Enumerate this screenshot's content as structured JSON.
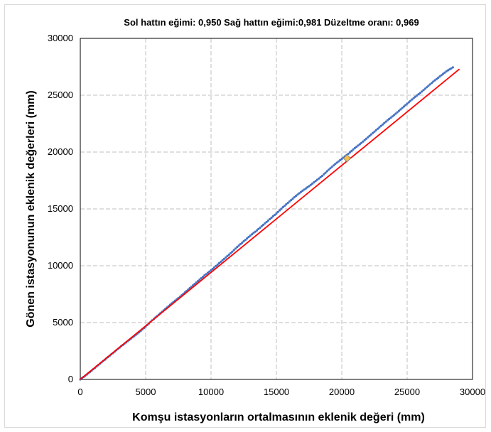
{
  "chart_data": {
    "type": "scatter",
    "title": "Sol hattın eğimi: 0,950 Sağ hattın eğimi:0,981 Düzeltme oranı: 0,969",
    "xlabel": "Komşu istasyonların ortalmasının eklenik değeri (mm)",
    "ylabel": "Gönen istasyonunun eklenik değerleri (mm)",
    "xlim": [
      0,
      30000
    ],
    "ylim": [
      0,
      30000
    ],
    "xticks": [
      "0",
      "5000",
      "10000",
      "15000",
      "20000",
      "25000",
      "30000"
    ],
    "yticks": [
      "0",
      "5000",
      "10000",
      "15000",
      "20000",
      "25000",
      "30000"
    ],
    "grid": true,
    "series": [
      {
        "color": "#4472c4",
        "marker": "dot",
        "x": [
          0,
          500,
          1000,
          1500,
          2000,
          2500,
          3000,
          3500,
          4000,
          4500,
          5000,
          5500,
          6000,
          6500,
          7000,
          7500,
          8000,
          8500,
          9000,
          9500,
          10000,
          10500,
          11000,
          11500,
          12000,
          12500,
          13000,
          13500,
          14000,
          14500,
          15000,
          15500,
          16000,
          16500,
          17000,
          17500,
          18000,
          18500,
          19000,
          19500,
          20000,
          20500,
          21000,
          21500,
          22000,
          22500,
          23000,
          23500,
          24000,
          24500,
          25000,
          25500,
          26000,
          26500,
          27000,
          27500,
          28000,
          28500
        ],
        "y": [
          0,
          430,
          900,
          1380,
          1850,
          2320,
          2800,
          3250,
          3700,
          4150,
          4650,
          5200,
          5700,
          6200,
          6700,
          7150,
          7650,
          8150,
          8650,
          9150,
          9600,
          10100,
          10600,
          11100,
          11650,
          12150,
          12650,
          13100,
          13600,
          14100,
          14600,
          15150,
          15650,
          16150,
          16600,
          17000,
          17450,
          17900,
          18450,
          18950,
          19400,
          19850,
          20350,
          20800,
          21300,
          21800,
          22300,
          22800,
          23250,
          23750,
          24250,
          24750,
          25200,
          25700,
          26200,
          26650,
          27100,
          27450
        ]
      },
      {
        "color": "#ff0000",
        "marker": "line",
        "x": [
          0,
          29000
        ],
        "y": [
          0,
          27300
        ]
      },
      {
        "color": "#f2c14e",
        "marker": "diamond",
        "x": [
          20400
        ],
        "y": [
          19450
        ]
      }
    ]
  }
}
